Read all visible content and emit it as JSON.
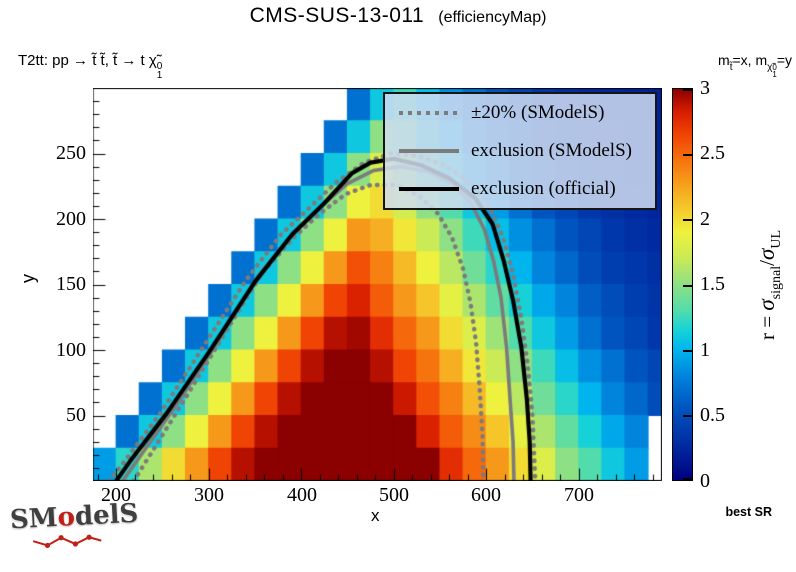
{
  "header": {
    "title": "CMS-SUS-13-011",
    "subtitle": "(efficiencyMap)"
  },
  "process_label": {
    "main": "T2tt: pp → t̃ t̃, t̃ → t χ̃",
    "sup": "0",
    "sub": "1"
  },
  "mass_hint": {
    "m1": "m",
    "stop_sub": "t̃",
    "eq_x": "=x, m",
    "chi": "χ̃",
    "chi_sup": "0",
    "chi_sub": "1",
    "eq_y": "=y"
  },
  "legend": {
    "items": [
      {
        "label": "±20% (SModelS)",
        "style": "dotted",
        "color": "#7b7b7b"
      },
      {
        "label": "exclusion (SModelS)",
        "style": "solid",
        "color": "#7b7b7b"
      },
      {
        "label": "exclusion (official)",
        "style": "solid",
        "color": "#000000"
      }
    ]
  },
  "plot": {
    "x_title": "x",
    "y_title": "y",
    "x_ticks": [
      "200",
      "300",
      "400",
      "500",
      "600",
      "700"
    ],
    "y_ticks": [
      "250",
      "200",
      "150",
      "100",
      "50"
    ]
  },
  "colorbar": {
    "ticks": [
      "3",
      "2.5",
      "2",
      "1.5",
      "1",
      "0.5",
      "0"
    ],
    "label": {
      "prefix": "r = ",
      "sigma": "σ",
      "sub_signal": "signal",
      "slash": "/",
      "sigma2": "σ",
      "sub_ul": "UL"
    }
  },
  "footer": {
    "logo_prefix": "SM",
    "logo_o": "o",
    "logo_suffix": "delS",
    "best_sr": "best SR"
  },
  "chart_data": {
    "type": "heatmap",
    "title": "CMS-SUS-13-011 (efficiencyMap)",
    "xlabel": "x",
    "ylabel": "y",
    "zlabel": "r = sigma_signal / sigma_UL",
    "x_range": [
      175,
      790
    ],
    "y_range": [
      0,
      300
    ],
    "z_range": [
      0,
      3
    ],
    "x_major_ticks": [
      200,
      300,
      400,
      500,
      600,
      700
    ],
    "y_major_ticks": [
      50,
      100,
      150,
      200,
      250
    ],
    "colorbar_ticks": [
      0,
      0.5,
      1,
      1.5,
      2,
      2.5,
      3
    ],
    "x_bin_width": 25,
    "y_bin_width": 25,
    "x_bin_centers": [
      187.5,
      212.5,
      237.5,
      262.5,
      287.5,
      312.5,
      337.5,
      362.5,
      387.5,
      412.5,
      437.5,
      462.5,
      487.5,
      512.5,
      537.5,
      562.5,
      587.5,
      612.5,
      637.5,
      662.5,
      687.5,
      712.5,
      737.5,
      762.5,
      787.5
    ],
    "y_bin_centers_top_to_bottom": [
      287.5,
      262.5,
      237.5,
      212.5,
      187.5,
      162.5,
      137.5,
      112.5,
      87.5,
      62.5,
      37.5,
      12.5
    ],
    "r_values": [
      [
        null,
        null,
        null,
        null,
        null,
        null,
        null,
        null,
        null,
        null,
        null,
        0.7,
        1.1,
        1.25,
        1.05,
        0.85,
        0.7,
        0.55,
        0.45,
        0.35,
        0.3,
        0.27,
        0.25,
        0.22,
        0.2
      ],
      [
        null,
        null,
        null,
        null,
        null,
        null,
        null,
        null,
        null,
        null,
        0.7,
        1.1,
        1.5,
        1.4,
        1.2,
        1.0,
        0.8,
        0.65,
        0.5,
        0.4,
        0.35,
        0.3,
        0.27,
        0.24,
        0.21
      ],
      [
        null,
        null,
        null,
        null,
        null,
        null,
        null,
        null,
        null,
        0.7,
        1.1,
        1.5,
        1.8,
        1.6,
        1.35,
        1.15,
        0.95,
        0.8,
        0.6,
        0.5,
        0.4,
        0.33,
        0.3,
        0.25,
        0.22
      ],
      [
        null,
        null,
        null,
        null,
        null,
        null,
        null,
        null,
        0.7,
        1.1,
        1.5,
        1.9,
        2.0,
        1.75,
        1.5,
        1.3,
        1.1,
        0.9,
        0.7,
        0.55,
        0.45,
        0.35,
        0.3,
        0.27,
        0.23
      ],
      [
        null,
        null,
        null,
        null,
        null,
        null,
        null,
        0.7,
        1.1,
        1.5,
        1.9,
        2.3,
        2.2,
        1.95,
        1.7,
        1.5,
        1.25,
        1.05,
        0.85,
        0.7,
        0.55,
        0.45,
        0.35,
        0.3,
        0.27
      ],
      [
        null,
        null,
        null,
        null,
        null,
        null,
        0.7,
        1.1,
        1.5,
        1.9,
        2.3,
        2.6,
        2.4,
        2.15,
        1.9,
        1.65,
        1.4,
        1.2,
        1.0,
        0.8,
        0.65,
        0.5,
        0.4,
        0.35,
        0.3
      ],
      [
        null,
        null,
        null,
        null,
        null,
        0.7,
        1.1,
        1.5,
        1.9,
        2.3,
        2.65,
        2.8,
        2.55,
        2.3,
        2.1,
        1.85,
        1.6,
        1.35,
        1.15,
        0.95,
        0.8,
        0.6,
        0.5,
        0.4,
        0.33
      ],
      [
        null,
        null,
        null,
        null,
        0.7,
        1.1,
        1.5,
        1.9,
        2.3,
        2.65,
        2.9,
        2.95,
        2.75,
        2.5,
        2.3,
        2.0,
        1.8,
        1.55,
        1.3,
        1.1,
        0.9,
        0.7,
        0.55,
        0.45,
        0.35
      ],
      [
        null,
        null,
        null,
        0.7,
        1.1,
        1.5,
        1.9,
        2.3,
        2.65,
        2.9,
        3,
        3,
        2.9,
        2.65,
        2.45,
        2.2,
        1.95,
        1.7,
        1.5,
        1.25,
        1.05,
        0.85,
        0.7,
        0.55,
        0.45
      ],
      [
        null,
        null,
        0.7,
        1.1,
        1.5,
        1.9,
        2.3,
        2.65,
        2.9,
        3,
        3,
        3,
        3,
        2.85,
        2.6,
        2.4,
        2.15,
        1.9,
        1.65,
        1.4,
        1.2,
        1.0,
        0.8,
        0.65,
        0.5
      ],
      [
        null,
        0.7,
        1.1,
        1.5,
        1.9,
        2.3,
        2.65,
        2.9,
        3,
        3,
        3,
        3,
        3,
        3,
        2.8,
        2.55,
        2.35,
        2.1,
        1.85,
        1.6,
        1.35,
        1.15,
        0.95,
        0.8,
        null
      ],
      [
        0.9,
        1.2,
        1.6,
        2.0,
        2.3,
        2.65,
        2.9,
        3,
        3,
        3,
        3,
        3,
        3,
        3,
        3,
        2.75,
        2.5,
        2.3,
        2.0,
        1.8,
        1.5,
        1.3,
        1.1,
        0.9,
        null
      ]
    ],
    "palette_stops": [
      [
        0.0,
        "#000080"
      ],
      [
        0.3,
        "#0030a4"
      ],
      [
        0.55,
        "#0054c0"
      ],
      [
        0.8,
        "#0084dc"
      ],
      [
        1.0,
        "#00b4ee"
      ],
      [
        1.15,
        "#16d2d8"
      ],
      [
        1.3,
        "#52dcac"
      ],
      [
        1.5,
        "#8ee084"
      ],
      [
        1.7,
        "#caea56"
      ],
      [
        1.9,
        "#eef23e"
      ],
      [
        2.05,
        "#f4d02e"
      ],
      [
        2.25,
        "#f6a41e"
      ],
      [
        2.45,
        "#f6740e"
      ],
      [
        2.65,
        "#f04404"
      ],
      [
        2.82,
        "#d81e00"
      ],
      [
        3.0,
        "#8b0000"
      ]
    ],
    "contour_styles": {
      "band_color": "#7b7b7b",
      "official_color": "#000000"
    },
    "contours": {
      "official_exclusion": [
        [
          200,
          0
        ],
        [
          215,
          15
        ],
        [
          255,
          52
        ],
        [
          300,
          98
        ],
        [
          350,
          152
        ],
        [
          390,
          188
        ],
        [
          425,
          212
        ],
        [
          455,
          235
        ],
        [
          475,
          243
        ],
        [
          500,
          246
        ],
        [
          530,
          241
        ],
        [
          560,
          231
        ],
        [
          588,
          216
        ],
        [
          607,
          196
        ],
        [
          619,
          168
        ],
        [
          629,
          138
        ],
        [
          638,
          102
        ],
        [
          644,
          62
        ],
        [
          647,
          30
        ],
        [
          648,
          0
        ]
      ],
      "smodels_exclusion": [
        [
          207,
          0
        ],
        [
          222,
          15
        ],
        [
          262,
          55
        ],
        [
          307,
          103
        ],
        [
          352,
          155
        ],
        [
          392,
          190
        ],
        [
          422,
          210
        ],
        [
          450,
          227
        ],
        [
          478,
          237
        ],
        [
          508,
          240
        ],
        [
          538,
          236
        ],
        [
          563,
          227
        ],
        [
          583,
          213
        ],
        [
          598,
          192
        ],
        [
          608,
          168
        ],
        [
          616,
          140
        ],
        [
          622,
          102
        ],
        [
          626,
          60
        ],
        [
          629,
          30
        ],
        [
          630,
          0
        ]
      ],
      "smodels_minus20": [
        [
          219,
          0
        ],
        [
          235,
          18
        ],
        [
          272,
          60
        ],
        [
          315,
          110
        ],
        [
          357,
          158
        ],
        [
          392,
          186
        ],
        [
          420,
          204
        ],
        [
          448,
          219
        ],
        [
          475,
          226
        ],
        [
          502,
          226
        ],
        [
          527,
          218
        ],
        [
          548,
          204
        ],
        [
          563,
          186
        ],
        [
          575,
          162
        ],
        [
          583,
          136
        ],
        [
          589,
          106
        ],
        [
          593,
          70
        ],
        [
          596,
          35
        ],
        [
          597,
          0
        ]
      ],
      "smodels_plus20": [
        [
          192,
          0
        ],
        [
          208,
          14
        ],
        [
          248,
          52
        ],
        [
          292,
          100
        ],
        [
          340,
          153
        ],
        [
          378,
          188
        ],
        [
          408,
          208
        ],
        [
          438,
          228
        ],
        [
          468,
          243
        ],
        [
          497,
          250
        ],
        [
          528,
          248
        ],
        [
          558,
          240
        ],
        [
          584,
          227
        ],
        [
          604,
          209
        ],
        [
          618,
          186
        ],
        [
          629,
          158
        ],
        [
          638,
          124
        ],
        [
          645,
          88
        ],
        [
          650,
          50
        ],
        [
          653,
          0
        ]
      ]
    },
    "missing_bins_note": "white notch at x 775-790, y 0-50 and empty region above diagonal y = x - 175"
  }
}
